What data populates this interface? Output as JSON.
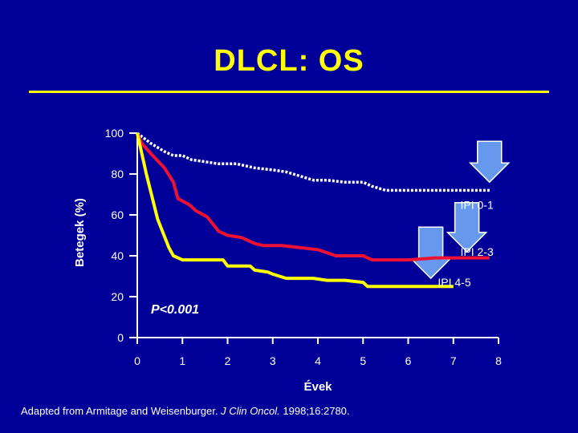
{
  "slide": {
    "title": "DLCL: OS"
  },
  "footer": {
    "prefix": "Adapted from Armitage and Weisenburger. ",
    "journal": "J Clin Oncol.",
    "suffix": " 1998;16:2780."
  },
  "colors": {
    "background": "#000099",
    "title": "#ffff00",
    "ipi_0_1": "#ffffff",
    "ipi_2_3": "#ee1133",
    "ipi_4_5": "#ffff00",
    "arrow": "#6699ee"
  },
  "chart_data": {
    "type": "line",
    "title": "",
    "xlabel": "Évek",
    "ylabel": "Betegek (%)",
    "xlim": [
      0,
      8
    ],
    "ylim": [
      0,
      100
    ],
    "x_ticks": [
      "0",
      "1",
      "2",
      "3",
      "4",
      "5",
      "6",
      "7",
      "8"
    ],
    "y_ticks": [
      "0",
      "20",
      "40",
      "60",
      "80",
      "100"
    ],
    "annotation": "P<0.001",
    "series": [
      {
        "name": "IPI 0-1",
        "style": "dotted",
        "color": "#ffffff",
        "label_at": [
          7.8,
          65
        ],
        "points": [
          [
            0,
            100
          ],
          [
            0.3,
            95
          ],
          [
            0.6,
            91
          ],
          [
            0.8,
            89
          ],
          [
            1.0,
            89
          ],
          [
            1.2,
            87
          ],
          [
            1.5,
            86
          ],
          [
            1.8,
            85
          ],
          [
            2.2,
            85
          ],
          [
            2.6,
            83
          ],
          [
            3.0,
            82
          ],
          [
            3.3,
            81
          ],
          [
            3.6,
            79
          ],
          [
            3.9,
            77
          ],
          [
            4.2,
            77
          ],
          [
            4.6,
            76
          ],
          [
            5.0,
            76
          ],
          [
            5.2,
            74
          ],
          [
            5.5,
            72
          ],
          [
            6.0,
            72
          ],
          [
            7.0,
            72
          ],
          [
            7.8,
            72
          ]
        ]
      },
      {
        "name": "IPI 2-3",
        "style": "solid",
        "color": "#ee1133",
        "label_at": [
          7.8,
          42
        ],
        "points": [
          [
            0,
            100
          ],
          [
            0.1,
            95
          ],
          [
            0.3,
            90
          ],
          [
            0.6,
            83
          ],
          [
            0.8,
            76
          ],
          [
            0.9,
            68
          ],
          [
            1.15,
            65
          ],
          [
            1.3,
            62
          ],
          [
            1.55,
            59
          ],
          [
            1.8,
            52
          ],
          [
            2.0,
            50
          ],
          [
            2.3,
            49
          ],
          [
            2.6,
            46
          ],
          [
            2.8,
            45
          ],
          [
            3.2,
            45
          ],
          [
            3.6,
            44
          ],
          [
            4.0,
            43
          ],
          [
            4.4,
            40
          ],
          [
            4.6,
            40
          ],
          [
            5.0,
            40
          ],
          [
            5.2,
            38
          ],
          [
            5.5,
            38
          ],
          [
            6.0,
            38
          ],
          [
            6.6,
            39
          ],
          [
            7.8,
            39
          ]
        ]
      },
      {
        "name": "IPI 4-5",
        "style": "solid",
        "color": "#ffff00",
        "label_at": [
          7.3,
          27
        ],
        "points": [
          [
            0,
            100
          ],
          [
            0.2,
            80
          ],
          [
            0.45,
            58
          ],
          [
            0.7,
            44
          ],
          [
            0.8,
            40
          ],
          [
            1.0,
            38
          ],
          [
            1.5,
            38
          ],
          [
            1.9,
            38
          ],
          [
            2.0,
            35
          ],
          [
            2.5,
            35
          ],
          [
            2.6,
            33
          ],
          [
            2.9,
            32
          ],
          [
            3.0,
            31
          ],
          [
            3.3,
            29
          ],
          [
            3.5,
            29
          ],
          [
            3.9,
            29
          ],
          [
            4.2,
            28
          ],
          [
            4.6,
            28
          ],
          [
            5.0,
            27
          ],
          [
            5.1,
            25
          ],
          [
            5.5,
            25
          ],
          [
            6.0,
            25
          ],
          [
            6.5,
            25
          ],
          [
            7.0,
            25
          ]
        ]
      }
    ],
    "arrows": [
      {
        "x": 7.8,
        "y_from": 96,
        "y_to": 76
      },
      {
        "x": 7.3,
        "y_from": 66,
        "y_to": 42
      },
      {
        "x": 6.5,
        "y_from": 54,
        "y_to": 29
      }
    ]
  }
}
